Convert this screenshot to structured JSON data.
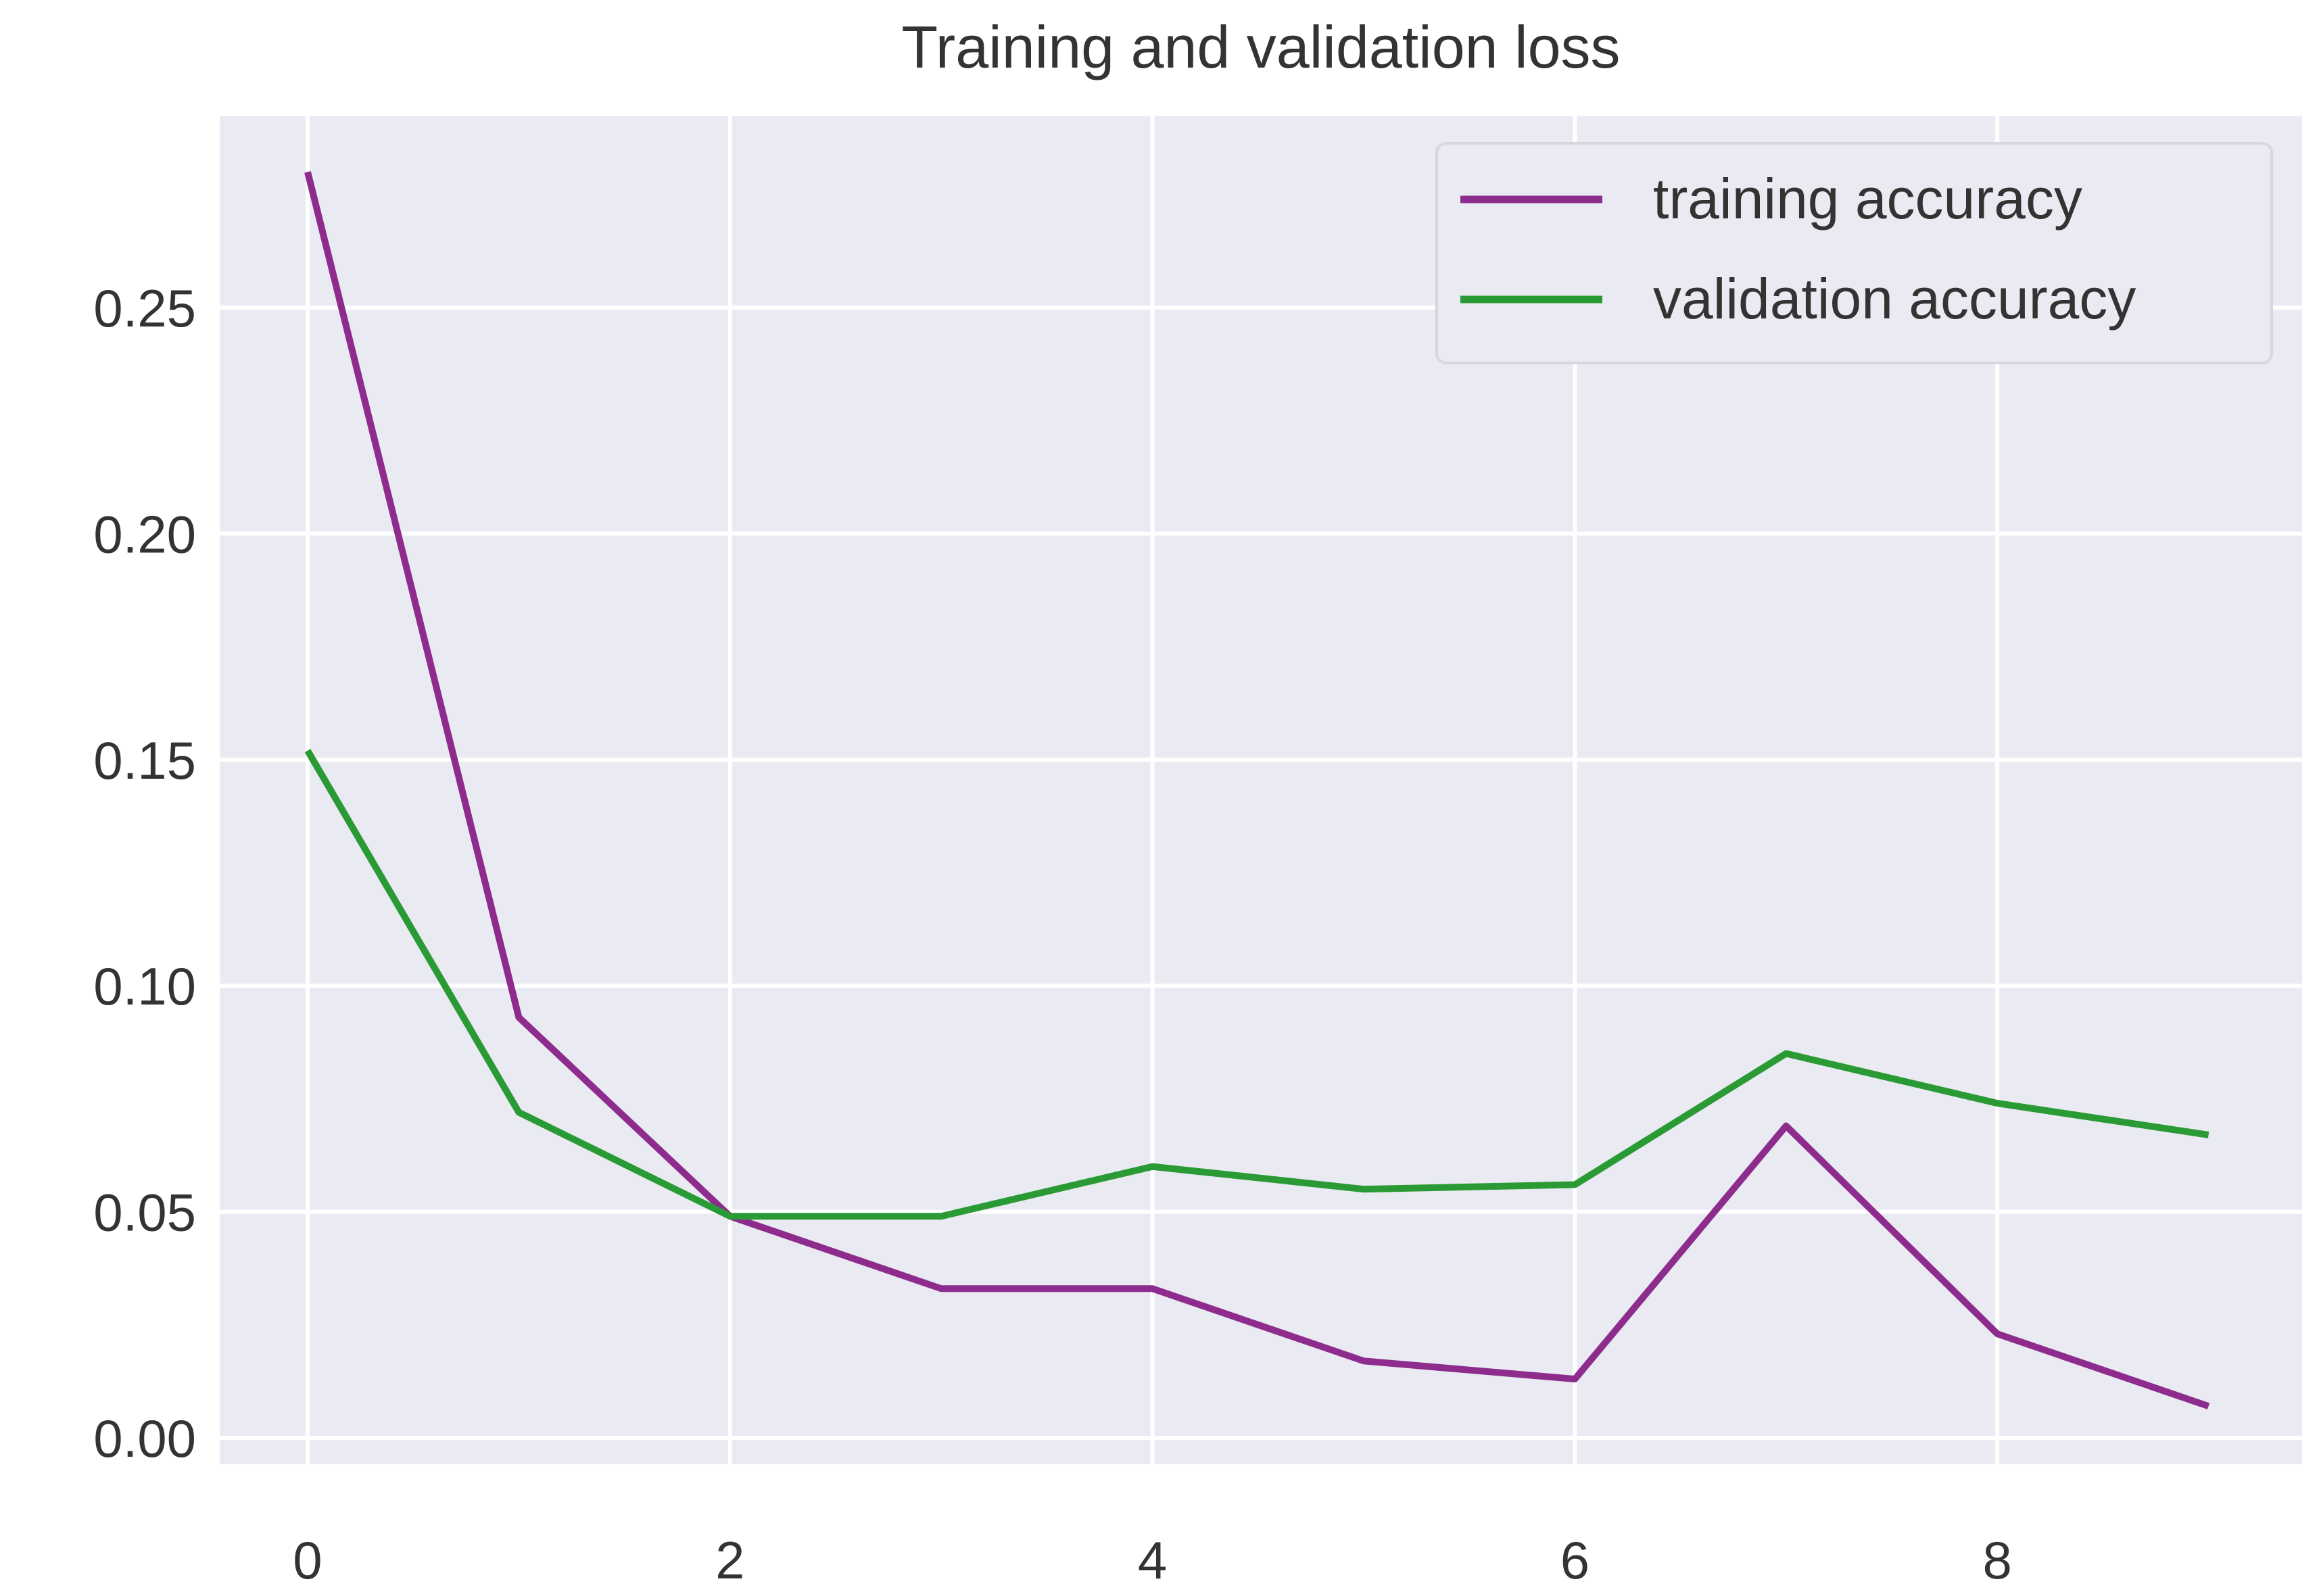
{
  "chart_data": {
    "type": "line",
    "title": "Training and validation loss",
    "xlabel": "",
    "ylabel": "",
    "x": [
      0,
      1,
      2,
      3,
      4,
      5,
      6,
      7,
      8,
      9
    ],
    "xlim": [
      -0.2,
      9.2
    ],
    "ylim": [
      -0.006,
      0.292
    ],
    "xticks": [
      "0",
      "2",
      "4",
      "6",
      "8"
    ],
    "xtick_values": [
      0,
      2,
      4,
      6,
      8
    ],
    "yticks": [
      "0.00",
      "0.05",
      "0.10",
      "0.15",
      "0.20",
      "0.25"
    ],
    "ytick_values": [
      0,
      0.05,
      0.1,
      0.15,
      0.2,
      0.25
    ],
    "grid": true,
    "legend_position": "top-right",
    "series": [
      {
        "name": "training accuracy",
        "color": "#8e2c8e",
        "values": [
          0.28,
          0.093,
          0.049,
          0.033,
          0.033,
          0.017,
          0.013,
          0.069,
          0.023,
          0.007
        ]
      },
      {
        "name": "validation accuracy",
        "color": "#2a9a34",
        "values": [
          0.152,
          0.072,
          0.049,
          0.049,
          0.06,
          0.055,
          0.056,
          0.085,
          0.074,
          0.067
        ]
      }
    ]
  }
}
